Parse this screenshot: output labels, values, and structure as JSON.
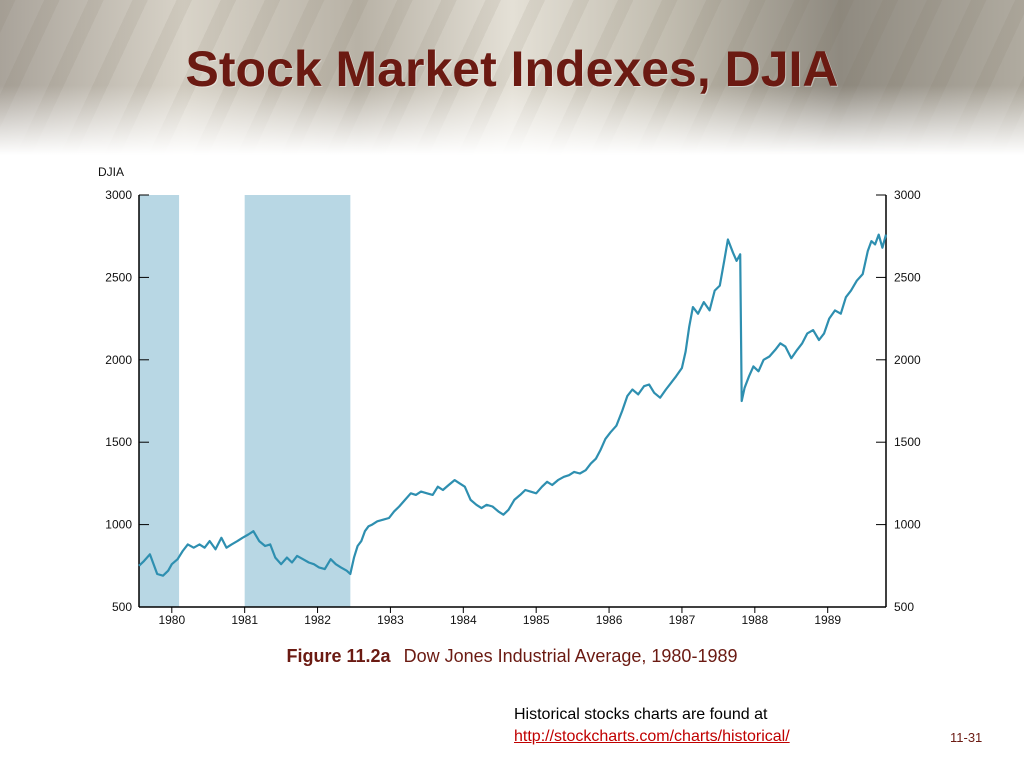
{
  "slide": {
    "title": "Stock Market Indexes, DJIA",
    "figure_label": "Figure 11.2a",
    "figure_caption": "Dow Jones Industrial Average, 1980-1989",
    "note_text": "Historical stocks charts are found at",
    "note_link": "http://stockcharts.com/charts/historical/",
    "slide_number": "11-31"
  },
  "colors": {
    "line": "#2e8fb0",
    "recession": "#b8d7e4",
    "title": "#6b1a12",
    "link": "#c00000"
  },
  "chart_data": {
    "type": "line",
    "ylabel": "DJIA",
    "ylim": [
      500,
      3000
    ],
    "y_ticks": [
      3000,
      2500,
      2000,
      1500,
      1000,
      500
    ],
    "x_ticks": [
      "1980",
      "1981",
      "1982",
      "1983",
      "1984",
      "1985",
      "1986",
      "1987",
      "1988",
      "1989"
    ],
    "x_tick_values": [
      1980,
      1981,
      1982,
      1983,
      1984,
      1985,
      1986,
      1987,
      1988,
      1989
    ],
    "xlim": [
      1979.55,
      1989.8
    ],
    "shaded_periods": [
      [
        1979.55,
        1980.1
      ],
      [
        1981.0,
        1982.45
      ]
    ],
    "series": [
      {
        "values": [
          [
            1979.55,
            750
          ],
          [
            1979.62,
            780
          ],
          [
            1979.7,
            820
          ],
          [
            1979.75,
            760
          ],
          [
            1979.8,
            700
          ],
          [
            1979.88,
            690
          ],
          [
            1979.95,
            720
          ],
          [
            1980.0,
            760
          ],
          [
            1980.08,
            790
          ],
          [
            1980.15,
            840
          ],
          [
            1980.22,
            880
          ],
          [
            1980.3,
            860
          ],
          [
            1980.38,
            880
          ],
          [
            1980.45,
            860
          ],
          [
            1980.52,
            900
          ],
          [
            1980.6,
            850
          ],
          [
            1980.68,
            920
          ],
          [
            1980.75,
            860
          ],
          [
            1980.82,
            880
          ],
          [
            1980.9,
            900
          ],
          [
            1980.97,
            920
          ],
          [
            1981.05,
            940
          ],
          [
            1981.12,
            960
          ],
          [
            1981.2,
            900
          ],
          [
            1981.28,
            870
          ],
          [
            1981.35,
            880
          ],
          [
            1981.42,
            800
          ],
          [
            1981.5,
            760
          ],
          [
            1981.58,
            800
          ],
          [
            1981.65,
            770
          ],
          [
            1981.72,
            810
          ],
          [
            1981.8,
            790
          ],
          [
            1981.88,
            770
          ],
          [
            1981.95,
            760
          ],
          [
            1982.02,
            740
          ],
          [
            1982.1,
            730
          ],
          [
            1982.18,
            790
          ],
          [
            1982.25,
            760
          ],
          [
            1982.32,
            740
          ],
          [
            1982.4,
            720
          ],
          [
            1982.45,
            700
          ],
          [
            1982.5,
            800
          ],
          [
            1982.55,
            870
          ],
          [
            1982.6,
            900
          ],
          [
            1982.65,
            960
          ],
          [
            1982.7,
            990
          ],
          [
            1982.75,
            1000
          ],
          [
            1982.82,
            1020
          ],
          [
            1982.9,
            1030
          ],
          [
            1982.98,
            1040
          ],
          [
            1983.05,
            1080
          ],
          [
            1983.12,
            1110
          ],
          [
            1983.2,
            1150
          ],
          [
            1983.28,
            1190
          ],
          [
            1983.35,
            1180
          ],
          [
            1983.42,
            1200
          ],
          [
            1983.5,
            1190
          ],
          [
            1983.58,
            1180
          ],
          [
            1983.65,
            1230
          ],
          [
            1983.72,
            1210
          ],
          [
            1983.8,
            1240
          ],
          [
            1983.88,
            1270
          ],
          [
            1983.95,
            1250
          ],
          [
            1984.02,
            1230
          ],
          [
            1984.1,
            1150
          ],
          [
            1984.18,
            1120
          ],
          [
            1984.25,
            1100
          ],
          [
            1984.32,
            1120
          ],
          [
            1984.4,
            1110
          ],
          [
            1984.48,
            1080
          ],
          [
            1984.55,
            1060
          ],
          [
            1984.62,
            1090
          ],
          [
            1984.7,
            1150
          ],
          [
            1984.78,
            1180
          ],
          [
            1984.85,
            1210
          ],
          [
            1984.92,
            1200
          ],
          [
            1985.0,
            1190
          ],
          [
            1985.08,
            1230
          ],
          [
            1985.15,
            1260
          ],
          [
            1985.22,
            1240
          ],
          [
            1985.3,
            1270
          ],
          [
            1985.38,
            1290
          ],
          [
            1985.45,
            1300
          ],
          [
            1985.52,
            1320
          ],
          [
            1985.6,
            1310
          ],
          [
            1985.68,
            1330
          ],
          [
            1985.75,
            1370
          ],
          [
            1985.82,
            1400
          ],
          [
            1985.88,
            1450
          ],
          [
            1985.95,
            1520
          ],
          [
            1986.02,
            1560
          ],
          [
            1986.1,
            1600
          ],
          [
            1986.18,
            1690
          ],
          [
            1986.25,
            1780
          ],
          [
            1986.32,
            1820
          ],
          [
            1986.4,
            1790
          ],
          [
            1986.48,
            1840
          ],
          [
            1986.55,
            1850
          ],
          [
            1986.62,
            1800
          ],
          [
            1986.7,
            1770
          ],
          [
            1986.78,
            1820
          ],
          [
            1986.85,
            1860
          ],
          [
            1986.92,
            1900
          ],
          [
            1987.0,
            1950
          ],
          [
            1987.05,
            2050
          ],
          [
            1987.1,
            2200
          ],
          [
            1987.15,
            2320
          ],
          [
            1987.22,
            2280
          ],
          [
            1987.3,
            2350
          ],
          [
            1987.38,
            2300
          ],
          [
            1987.45,
            2420
          ],
          [
            1987.52,
            2450
          ],
          [
            1987.58,
            2600
          ],
          [
            1987.63,
            2730
          ],
          [
            1987.7,
            2650
          ],
          [
            1987.75,
            2600
          ],
          [
            1987.8,
            2640
          ],
          [
            1987.82,
            1750
          ],
          [
            1987.86,
            1830
          ],
          [
            1987.92,
            1900
          ],
          [
            1987.98,
            1960
          ],
          [
            1988.05,
            1930
          ],
          [
            1988.12,
            2000
          ],
          [
            1988.2,
            2020
          ],
          [
            1988.28,
            2060
          ],
          [
            1988.35,
            2100
          ],
          [
            1988.42,
            2080
          ],
          [
            1988.5,
            2010
          ],
          [
            1988.58,
            2060
          ],
          [
            1988.65,
            2100
          ],
          [
            1988.72,
            2160
          ],
          [
            1988.8,
            2180
          ],
          [
            1988.88,
            2120
          ],
          [
            1988.95,
            2160
          ],
          [
            1989.02,
            2250
          ],
          [
            1989.1,
            2300
          ],
          [
            1989.18,
            2280
          ],
          [
            1989.25,
            2380
          ],
          [
            1989.32,
            2420
          ],
          [
            1989.4,
            2480
          ],
          [
            1989.48,
            2520
          ],
          [
            1989.55,
            2660
          ],
          [
            1989.6,
            2720
          ],
          [
            1989.65,
            2700
          ],
          [
            1989.7,
            2760
          ],
          [
            1989.75,
            2680
          ],
          [
            1989.8,
            2760
          ]
        ]
      }
    ]
  }
}
